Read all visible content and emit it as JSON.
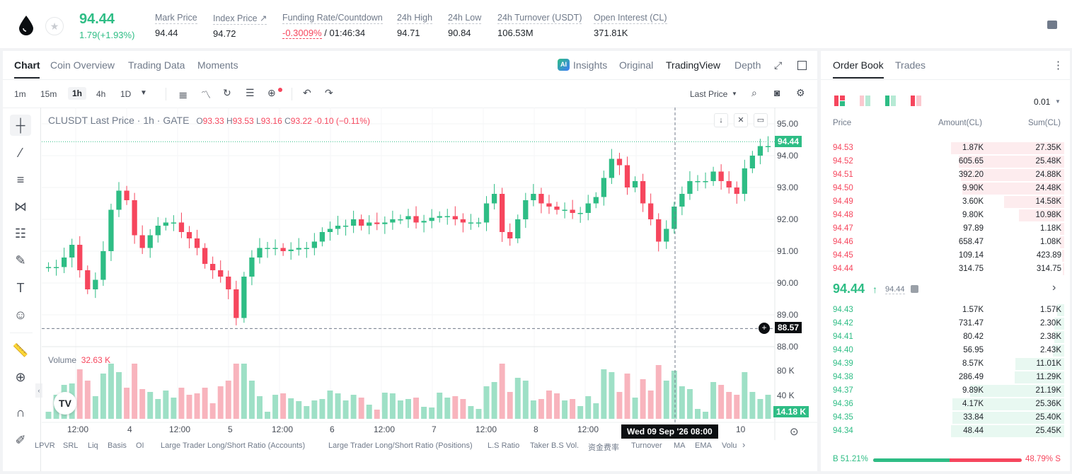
{
  "ticker": {
    "price": "94.44",
    "change": "1.79(+1.93%)",
    "stats": [
      {
        "label": "Mark Price",
        "value": "94.44"
      },
      {
        "label": "Index Price ↗",
        "value": "94.72"
      },
      {
        "label": "Funding Rate/Countdown",
        "value_red": "-0.3009%",
        "value": " / 01:46:34"
      },
      {
        "label": "24h High",
        "value": "94.71"
      },
      {
        "label": "24h Low",
        "value": "90.84"
      },
      {
        "label": "24h Turnover (USDT)",
        "value": "106.53M"
      },
      {
        "label": "Open Interest (CL)",
        "value": "371.81K"
      }
    ]
  },
  "chart_tabs": [
    "Chart",
    "Coin Overview",
    "Trading Data",
    "Moments"
  ],
  "view_tabs": {
    "insights": "Insights",
    "original": "Original",
    "tradingview": "TradingView",
    "depth": "Depth"
  },
  "intervals": [
    "1m",
    "15m",
    "1h",
    "4h",
    "1D"
  ],
  "selected_interval": "1h",
  "price_type": "Last Price",
  "legend": {
    "title": "CLUSDT Last Price · 1h · GATE",
    "o": "93.33",
    "h": "93.53",
    "l": "93.16",
    "c": "93.22",
    "chg": "-0.10 (−0.11%)"
  },
  "volume_label": "Volume",
  "volume_value": "32.63 K",
  "price_axis": [
    "95.00",
    "94.00",
    "93.00",
    "92.00",
    "91.00",
    "90.00",
    "89.00",
    "88.00"
  ],
  "volume_axis": [
    "80 K",
    "40 K"
  ],
  "time_axis": [
    "12:00",
    "4",
    "12:00",
    "5",
    "12:00",
    "6",
    "12:00",
    "7",
    "12:00",
    "8",
    "12:00",
    "10"
  ],
  "last_price_tag": "94.44",
  "crosshair_price": "88.57",
  "volume_tag": "14.18 K",
  "crosshair_time": "Wed 09 Sep '26   08:00",
  "indicators": [
    "LPVR",
    "SRL",
    "Liq",
    "Basis",
    "OI",
    "Large Trader Long/Short Ratio (Accounts)",
    "Large Trader Long/Short Ratio (Positions)",
    "L.S Ratio",
    "Taker B.S Vol.",
    "资金费率",
    "Turnover",
    "MA",
    "EMA",
    "Volu"
  ],
  "orderbook": {
    "tabs": [
      "Order Book",
      "Trades"
    ],
    "precision": "0.01",
    "headers": {
      "price": "Price",
      "amount": "Amount(CL)",
      "sum": "Sum(CL)"
    },
    "asks": [
      {
        "price": "94.53",
        "amount": "1.87K",
        "sum": "27.35K",
        "depth": 1.0
      },
      {
        "price": "94.52",
        "amount": "605.65",
        "sum": "25.48K",
        "depth": 0.93
      },
      {
        "price": "94.51",
        "amount": "392.20",
        "sum": "24.88K",
        "depth": 0.91
      },
      {
        "price": "94.50",
        "amount": "9.90K",
        "sum": "24.48K",
        "depth": 0.9
      },
      {
        "price": "94.49",
        "amount": "3.60K",
        "sum": "14.58K",
        "depth": 0.53
      },
      {
        "price": "94.48",
        "amount": "9.80K",
        "sum": "10.98K",
        "depth": 0.4
      },
      {
        "price": "94.47",
        "amount": "97.89",
        "sum": "1.18K",
        "depth": 0.04
      },
      {
        "price": "94.46",
        "amount": "658.47",
        "sum": "1.08K",
        "depth": 0.04
      },
      {
        "price": "94.45",
        "amount": "109.14",
        "sum": "423.89",
        "depth": 0.02
      },
      {
        "price": "94.44",
        "amount": "314.75",
        "sum": "314.75",
        "depth": 0.01
      }
    ],
    "mid_price": "94.44",
    "mid_mark": "94.44",
    "bids": [
      {
        "price": "94.43",
        "amount": "1.57K",
        "sum": "1.57K",
        "depth": 0.06
      },
      {
        "price": "94.42",
        "amount": "731.47",
        "sum": "2.30K",
        "depth": 0.09
      },
      {
        "price": "94.41",
        "amount": "80.42",
        "sum": "2.38K",
        "depth": 0.09
      },
      {
        "price": "94.40",
        "amount": "56.95",
        "sum": "2.43K",
        "depth": 0.1
      },
      {
        "price": "94.39",
        "amount": "8.57K",
        "sum": "11.01K",
        "depth": 0.43
      },
      {
        "price": "94.38",
        "amount": "286.49",
        "sum": "11.29K",
        "depth": 0.44
      },
      {
        "price": "94.37",
        "amount": "9.89K",
        "sum": "21.19K",
        "depth": 0.83
      },
      {
        "price": "94.36",
        "amount": "4.17K",
        "sum": "25.36K",
        "depth": 0.99
      },
      {
        "price": "94.35",
        "amount": "33.84",
        "sum": "25.40K",
        "depth": 0.99
      },
      {
        "price": "94.34",
        "amount": "48.44",
        "sum": "25.45K",
        "depth": 1.0
      }
    ],
    "buy_ratio": "B 51.21%",
    "sell_ratio": "48.79% S",
    "buy_fraction": 0.5121
  },
  "colors": {
    "up": "#2ebd85",
    "down": "#f6465d"
  }
}
